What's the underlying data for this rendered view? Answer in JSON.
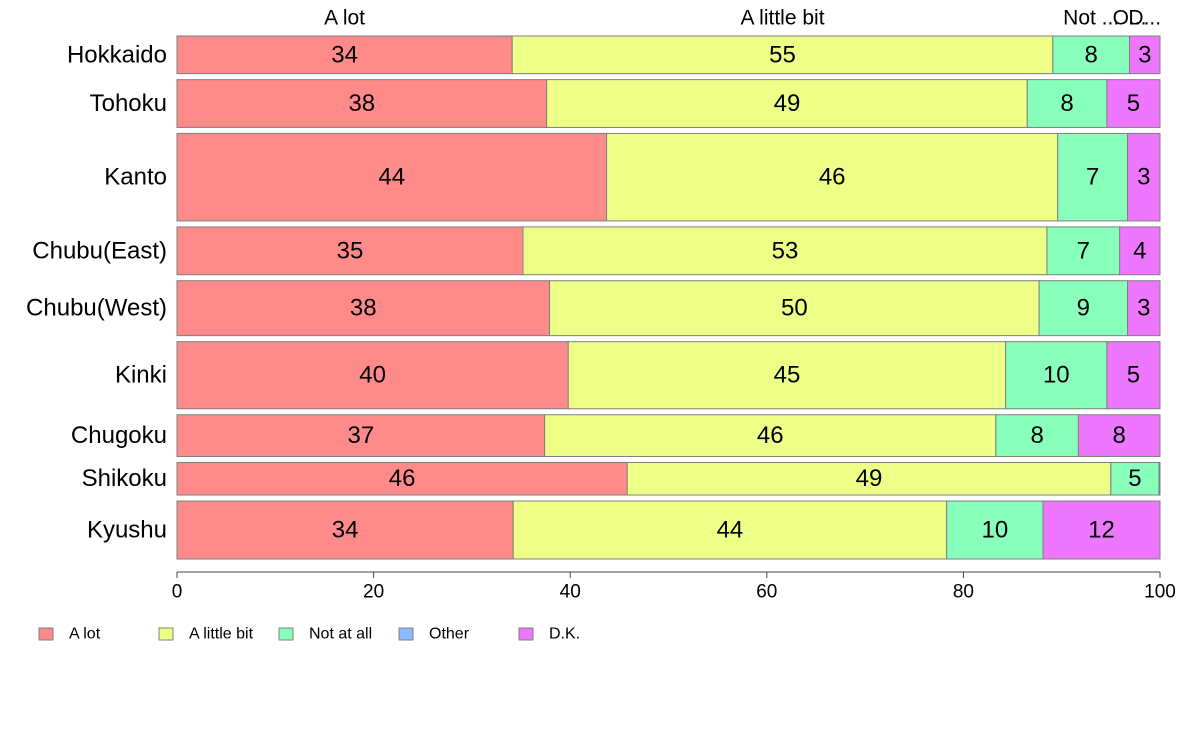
{
  "chart_data": {
    "type": "bar",
    "orientation": "horizontal",
    "stacked": true,
    "categories": [
      "Hokkaido",
      "Tohoku",
      "Kanto",
      "Chubu(East)",
      "Chubu(West)",
      "Kinki",
      "Chugoku",
      "Shikoku",
      "Kyushu"
    ],
    "relative_row_heights": [
      37,
      47,
      86,
      47,
      54,
      66,
      41,
      32,
      57
    ],
    "series": [
      {
        "name": "A lot",
        "color": "#ff8a8a",
        "values": [
          34.1,
          37.6,
          43.7,
          35.2,
          37.9,
          39.8,
          37.4,
          45.8,
          34.2
        ]
      },
      {
        "name": "A little bit",
        "color": "#eeff88",
        "values": [
          55.0,
          48.9,
          45.9,
          53.3,
          49.8,
          44.5,
          45.9,
          49.2,
          44.1
        ]
      },
      {
        "name": "Not at all",
        "color": "#88ffbb",
        "values": [
          7.8,
          8.1,
          7.1,
          7.4,
          9.0,
          10.3,
          8.4,
          4.9,
          9.8
        ]
      },
      {
        "name": "Other",
        "color": "#88bbff",
        "values": [
          0,
          0,
          0,
          0,
          0,
          0,
          0,
          0,
          0
        ]
      },
      {
        "name": "D.K.",
        "color": "#ee77ff",
        "values": [
          3.1,
          5.4,
          3.3,
          4.1,
          3.3,
          5.4,
          8.3,
          0.1,
          11.9
        ]
      }
    ],
    "top_labels": [
      "A lot",
      "A little bit",
      "Not ...",
      "O...",
      "D..."
    ],
    "x_ticks": [
      0,
      20,
      40,
      60,
      80,
      100
    ],
    "xlim": [
      0,
      100
    ],
    "grid": false,
    "legend_position": "bottom"
  }
}
